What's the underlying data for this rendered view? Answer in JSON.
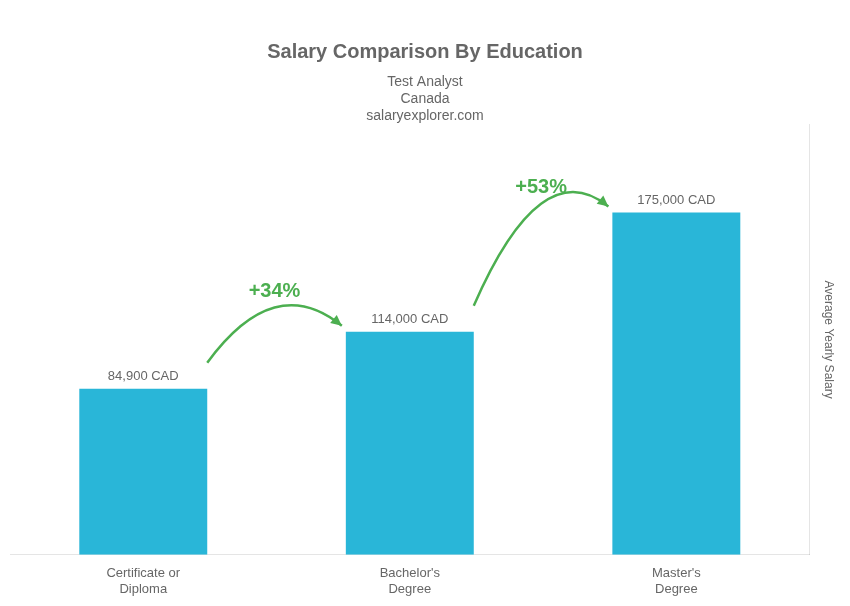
{
  "chart_data": {
    "type": "bar",
    "title": "Salary Comparison By Education",
    "subtitle": [
      "Test Analyst",
      "Canada",
      "salaryexplorer.com"
    ],
    "categories": [
      "Certificate or\nDiploma",
      "Bachelor's\nDegree",
      "Master's\nDegree"
    ],
    "values": [
      84900,
      114000,
      175000
    ],
    "value_labels": [
      "84,900 CAD",
      "114,000 CAD",
      "175,000 CAD"
    ],
    "data_labels": true,
    "annotations": [
      "+34%",
      "+53%"
    ],
    "color": "#29b6d8",
    "ylabel": "Average Yearly Salary",
    "ylim": [
      0,
      220000
    ],
    "tick_labels": "x",
    "grid": false
  }
}
